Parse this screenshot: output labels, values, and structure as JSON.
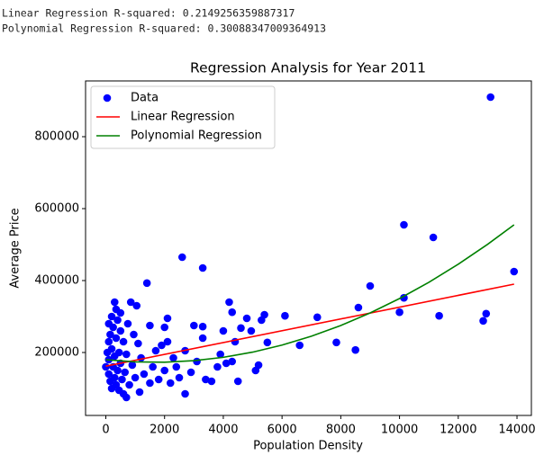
{
  "output_lines": [
    "Linear Regression R-squared: 0.2149256359887317",
    "Polynomial Regression R-squared: 0.30088347009364913"
  ],
  "chart_data": {
    "type": "scatter",
    "title": "Regression Analysis for Year 2011",
    "x_label": "Population Density",
    "y_label": "Average Price",
    "xlim": [
      -690,
      14490
    ],
    "ylim": [
      25000,
      955000
    ],
    "xticks": [
      0,
      2000,
      4000,
      6000,
      8000,
      10000,
      12000,
      14000
    ],
    "yticks": [
      200000,
      400000,
      600000,
      800000
    ],
    "grid": false,
    "legend": "upper left",
    "series": [
      {
        "name": "Data",
        "color": "#0000ff",
        "mode": "markers",
        "x": [
          0,
          50,
          100,
          100,
          100,
          100,
          150,
          150,
          200,
          200,
          200,
          250,
          250,
          300,
          300,
          300,
          350,
          350,
          350,
          400,
          400,
          450,
          450,
          500,
          500,
          500,
          550,
          600,
          600,
          650,
          700,
          700,
          750,
          800,
          850,
          900,
          950,
          1000,
          1050,
          1100,
          1150,
          1200,
          1300,
          1400,
          1500,
          1500,
          1600,
          1700,
          1800,
          1900,
          2000,
          2000,
          2100,
          2100,
          2200,
          2300,
          2400,
          2500,
          2600,
          2700,
          2700,
          2900,
          3000,
          3100,
          3300,
          3300,
          3300,
          3400,
          3600,
          3800,
          3900,
          4000,
          4100,
          4200,
          4300,
          4300,
          4400,
          4600,
          4500,
          4800,
          4950,
          5100,
          5200,
          5300,
          5400,
          5500,
          6100,
          6600,
          7200,
          7850,
          8500,
          8600,
          9000,
          10000,
          10150,
          10150,
          11150,
          11350,
          12850,
          12950,
          13100,
          13900
        ],
        "values": [
          160000,
          200000,
          280000,
          230000,
          180000,
          140000,
          250000,
          120000,
          300000,
          210000,
          100000,
          270000,
          160000,
          340000,
          190000,
          130000,
          320000,
          240000,
          110000,
          290000,
          150000,
          200000,
          95000,
          310000,
          260000,
          170000,
          125000,
          230000,
          85000,
          145000,
          75000,
          195000,
          280000,
          110000,
          340000,
          165000,
          250000,
          130000,
          330000,
          225000,
          90000,
          185000,
          140000,
          393000,
          275000,
          115000,
          160000,
          205000,
          125000,
          220000,
          270000,
          150000,
          295000,
          230000,
          115000,
          185000,
          160000,
          130000,
          465000,
          85000,
          205000,
          145000,
          275000,
          175000,
          435000,
          272000,
          240000,
          125000,
          120000,
          160000,
          195000,
          260000,
          170000,
          340000,
          312000,
          175000,
          230000,
          268000,
          120000,
          295000,
          260000,
          150000,
          165000,
          290000,
          305000,
          228000,
          302000,
          220000,
          298000,
          228000,
          207000,
          325000,
          385000,
          312000,
          352000,
          555000,
          520000,
          302000,
          288000,
          308000,
          910000,
          425000
        ]
      },
      {
        "name": "Linear Regression",
        "color": "#ff0000",
        "mode": "lines",
        "x": [
          0,
          13900
        ],
        "values": [
          162000,
          390000
        ]
      },
      {
        "name": "Polynomial Regression",
        "color": "#008000",
        "mode": "lines",
        "x": [
          0,
          1000,
          2000,
          3000,
          4000,
          5000,
          6000,
          7000,
          8000,
          9000,
          10000,
          11000,
          12000,
          13000,
          13900
        ],
        "values": [
          180000,
          174000,
          173000,
          177300,
          186600,
          201000,
          220600,
          245300,
          275100,
          310000,
          350000,
          395100,
          445400,
          500800,
          555000
        ]
      }
    ]
  }
}
